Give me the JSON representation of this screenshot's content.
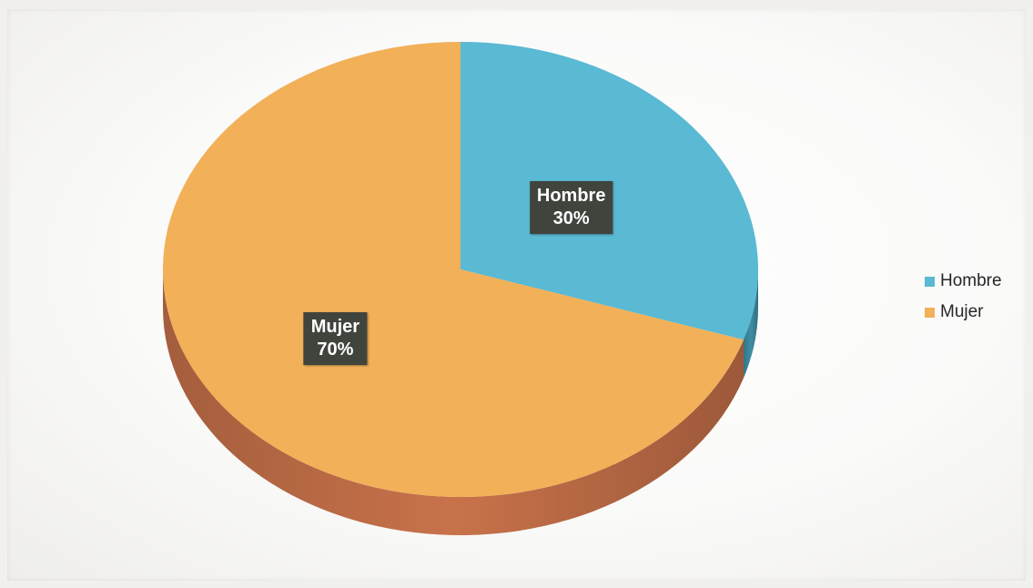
{
  "chart_data": {
    "type": "pie",
    "title": "",
    "categories": [
      "Hombre",
      "Mujer"
    ],
    "values": [
      30,
      70
    ],
    "value_labels": [
      "30%",
      "70%"
    ],
    "colors": [
      "#5ab9d3",
      "#f2b058"
    ],
    "side_colors": [
      "#3f8ea4",
      "#c8724a"
    ],
    "legend": {
      "position": "right",
      "entries": [
        "Hombre",
        "Mujer"
      ]
    },
    "style": "3d"
  }
}
